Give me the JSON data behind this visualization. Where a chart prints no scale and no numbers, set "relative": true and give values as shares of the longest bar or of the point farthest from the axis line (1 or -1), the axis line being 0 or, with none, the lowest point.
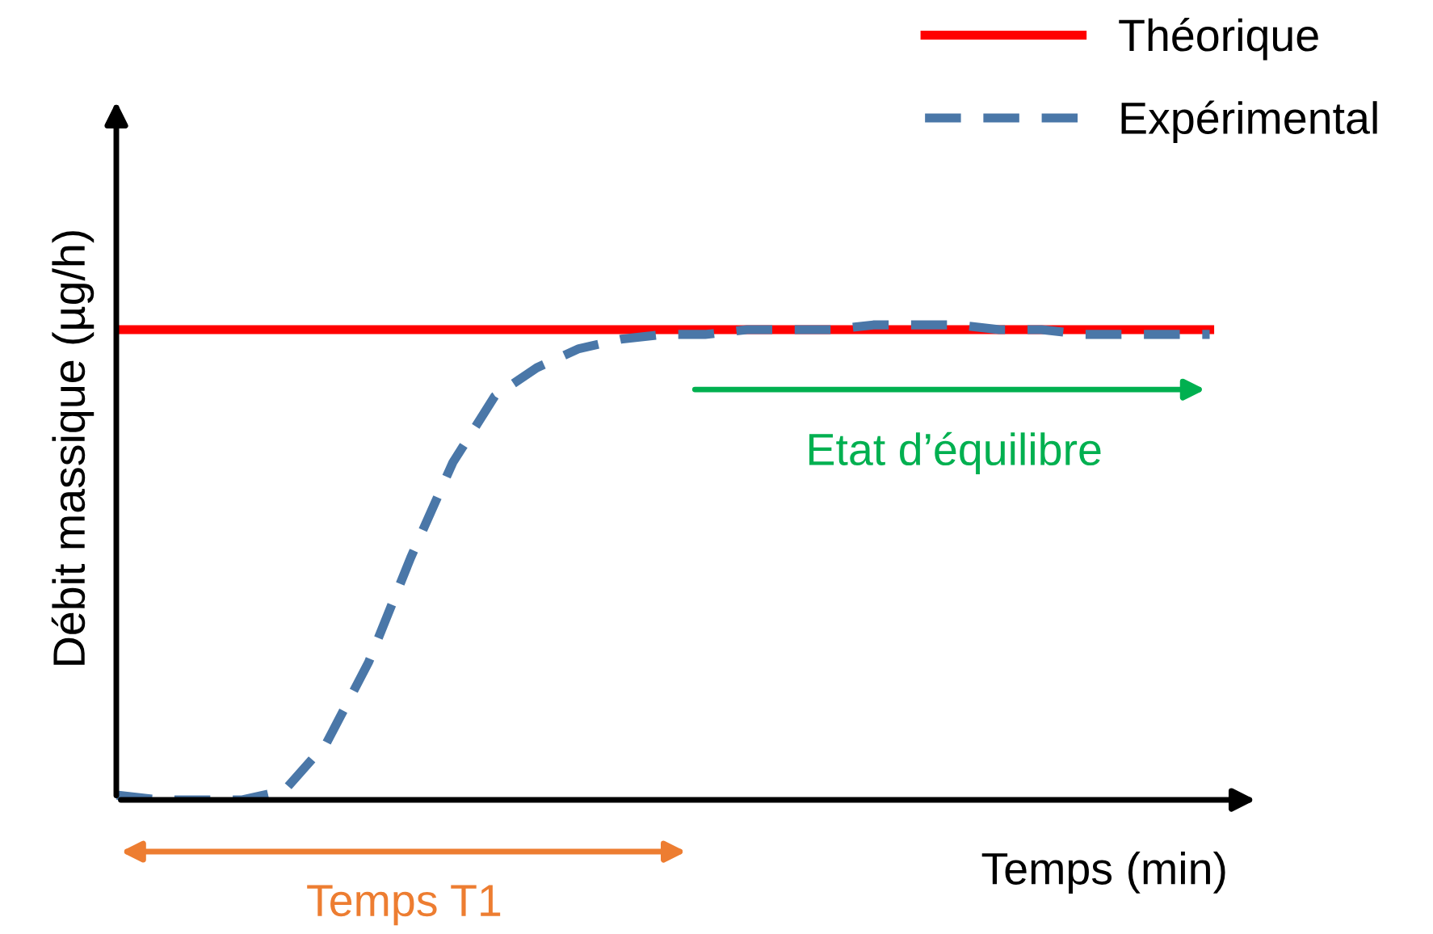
{
  "chart_data": {
    "type": "line",
    "relative": true,
    "xlabel": "Temps (min)",
    "ylabel": "Débit massique (µg/h)",
    "categories": [
      null,
      null,
      null,
      null,
      null,
      null,
      null,
      null,
      null,
      null,
      null,
      null,
      null,
      null,
      null,
      null,
      null,
      null,
      null,
      null,
      null,
      null,
      null,
      null,
      null,
      null,
      null
    ],
    "series": [
      {
        "name": "Théorique",
        "color": "#ff0000",
        "line_style": "solid",
        "values": [
          0.99,
          0.99,
          0.99,
          0.99,
          0.99,
          0.99,
          0.99,
          0.99,
          0.99,
          0.99,
          0.99,
          0.99,
          0.99,
          0.99,
          0.99,
          0.99,
          0.99,
          0.99,
          0.99,
          0.99,
          0.99,
          0.99,
          0.99,
          0.99,
          0.99,
          0.99,
          0.99
        ]
      },
      {
        "name": "Expérimental",
        "color": "#4a77a8",
        "line_style": "dashed",
        "values": [
          0.01,
          0.0,
          0.0,
          0.0,
          0.02,
          0.12,
          0.29,
          0.51,
          0.71,
          0.85,
          0.91,
          0.95,
          0.97,
          0.98,
          0.98,
          0.99,
          0.99,
          0.99,
          1.0,
          1.0,
          1.0,
          0.99,
          0.99,
          0.98,
          0.98,
          0.98,
          0.98
        ]
      }
    ],
    "annotations": [
      "Etat d’équilibre",
      "Temps T1"
    ],
    "legend": "top right",
    "grid": false,
    "marker": "none"
  }
}
